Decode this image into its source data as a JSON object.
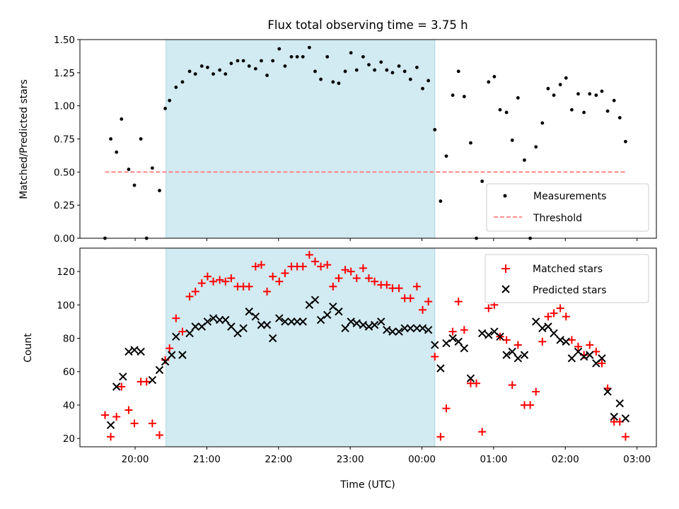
{
  "chart_data": {
    "type": "scatter",
    "title": "Flux total observing time = 3.75 h",
    "xlabel": "Time (UTC)",
    "x_unit": "hours after 00:00 UTC of the first day",
    "xlim": [
      19.23,
      27.27
    ],
    "xticks": [
      {
        "x": 20,
        "label": "20:00"
      },
      {
        "x": 21,
        "label": "21:00"
      },
      {
        "x": 22,
        "label": "22:00"
      },
      {
        "x": 23,
        "label": "23:00"
      },
      {
        "x": 24,
        "label": "00:00"
      },
      {
        "x": 25,
        "label": "01:00"
      },
      {
        "x": 26,
        "label": "02:00"
      },
      {
        "x": 27,
        "label": "03:00"
      }
    ],
    "shaded_region": {
      "x_start": 20.43,
      "x_end": 24.18,
      "color": "#add8e6"
    },
    "top_panel": {
      "ylabel": "Matched/Predicted stars",
      "ylim": [
        0,
        1.5
      ],
      "yticks": [
        "0.00",
        "0.25",
        "0.50",
        "0.75",
        "1.00",
        "1.25",
        "1.50"
      ],
      "legend": {
        "location": "lower right",
        "entries": [
          "Measurements",
          "Threshold"
        ]
      },
      "threshold": {
        "name": "Threshold",
        "y": 0.5,
        "x_start": 19.58,
        "x_end": 26.86,
        "color": "#ff7f7f"
      },
      "measurements": {
        "name": "Measurements",
        "color": "#000000",
        "x": [
          19.58,
          19.66,
          19.74,
          19.81,
          19.91,
          19.99,
          20.08,
          20.16,
          20.24,
          20.34,
          20.42,
          20.48,
          20.57,
          20.66,
          20.76,
          20.84,
          20.93,
          21.01,
          21.09,
          21.18,
          21.26,
          21.34,
          21.43,
          21.51,
          21.59,
          21.68,
          21.76,
          21.84,
          21.92,
          22.01,
          22.09,
          22.18,
          22.26,
          22.34,
          22.43,
          22.51,
          22.59,
          22.68,
          22.76,
          22.84,
          22.93,
          23.01,
          23.09,
          23.18,
          23.26,
          23.34,
          23.43,
          23.51,
          23.59,
          23.68,
          23.76,
          23.84,
          23.93,
          24.01,
          24.09,
          24.18,
          24.26,
          24.34,
          24.43,
          24.51,
          24.59,
          24.68,
          24.76,
          24.84,
          24.93,
          25.01,
          25.09,
          25.18,
          25.26,
          25.34,
          25.43,
          25.51,
          25.59,
          25.68,
          25.76,
          25.84,
          25.93,
          26.01,
          26.09,
          26.18,
          26.26,
          26.34,
          26.43,
          26.51,
          26.59,
          26.68,
          26.76,
          26.84
        ],
        "y": [
          0.0,
          0.75,
          0.65,
          0.9,
          0.52,
          0.4,
          0.75,
          0.0,
          0.53,
          0.36,
          0.98,
          1.04,
          1.14,
          1.18,
          1.26,
          1.24,
          1.3,
          1.29,
          1.24,
          1.27,
          1.24,
          1.32,
          1.34,
          1.34,
          1.3,
          1.28,
          1.34,
          1.23,
          1.34,
          1.43,
          1.3,
          1.37,
          1.37,
          1.37,
          1.44,
          1.26,
          1.2,
          1.37,
          1.18,
          1.17,
          1.26,
          1.4,
          1.27,
          1.37,
          1.31,
          1.27,
          1.33,
          1.27,
          1.25,
          1.3,
          1.26,
          1.2,
          1.29,
          1.13,
          1.19,
          0.82,
          0.28,
          0.62,
          1.08,
          1.26,
          1.07,
          0.72,
          0.0,
          0.43,
          1.18,
          1.22,
          0.97,
          0.95,
          0.74,
          1.06,
          0.59,
          0.0,
          0.69,
          0.87,
          1.13,
          1.08,
          1.16,
          1.21,
          0.97,
          1.09,
          0.95,
          1.09,
          1.08,
          1.11,
          0.96,
          1.04,
          0.91,
          0.73
        ]
      }
    },
    "bottom_panel": {
      "ylabel": "Count",
      "ylim": [
        15,
        134
      ],
      "yticks": [
        "20",
        "40",
        "60",
        "80",
        "100",
        "120"
      ],
      "legend": {
        "location": "upper right",
        "entries": [
          "Matched stars",
          "Predicted stars"
        ]
      },
      "series": [
        {
          "name": "Matched stars",
          "marker": "+",
          "color": "#ff0000",
          "x": [
            19.58,
            19.66,
            19.74,
            19.81,
            19.91,
            19.99,
            20.08,
            20.16,
            20.24,
            20.34,
            20.42,
            20.48,
            20.57,
            20.66,
            20.76,
            20.84,
            20.93,
            21.01,
            21.09,
            21.18,
            21.26,
            21.34,
            21.43,
            21.51,
            21.59,
            21.68,
            21.76,
            21.84,
            21.92,
            22.01,
            22.09,
            22.18,
            22.26,
            22.34,
            22.43,
            22.51,
            22.59,
            22.68,
            22.76,
            22.84,
            22.93,
            23.01,
            23.09,
            23.18,
            23.26,
            23.34,
            23.43,
            23.51,
            23.59,
            23.68,
            23.76,
            23.84,
            23.93,
            24.01,
            24.09,
            24.18,
            24.26,
            24.34,
            24.43,
            24.51,
            24.59,
            24.68,
            24.76,
            24.84,
            24.93,
            25.01,
            25.09,
            25.18,
            25.26,
            25.34,
            25.43,
            25.51,
            25.59,
            25.68,
            25.76,
            25.84,
            25.93,
            26.01,
            26.09,
            26.18,
            26.26,
            26.34,
            26.43,
            26.51,
            26.59,
            26.68,
            26.76,
            26.84
          ],
          "y": [
            34,
            21,
            33,
            51,
            37,
            29,
            54,
            54,
            29,
            22,
            67,
            74,
            92,
            84,
            105,
            108,
            113,
            117,
            114,
            115,
            114,
            116,
            111,
            111,
            111,
            123,
            124,
            108,
            117,
            114,
            119,
            123,
            123,
            123,
            130,
            126,
            123,
            124,
            111,
            116,
            121,
            120,
            116,
            122,
            116,
            114,
            112,
            112,
            110,
            110,
            104,
            104,
            111,
            97,
            102,
            69,
            21,
            38,
            84,
            102,
            85,
            53,
            53,
            24,
            98,
            100,
            81,
            79,
            52,
            76,
            40,
            40,
            48,
            78,
            93,
            95,
            98,
            93,
            79,
            75,
            70,
            76,
            72,
            65,
            50,
            30,
            30,
            21
          ]
        },
        {
          "name": "Predicted stars",
          "marker": "x",
          "color": "#000000",
          "x": [
            19.66,
            19.74,
            19.83,
            19.91,
            19.99,
            20.08,
            20.24,
            20.34,
            20.42,
            20.51,
            20.57,
            20.66,
            20.76,
            20.84,
            20.93,
            21.01,
            21.09,
            21.18,
            21.26,
            21.34,
            21.43,
            21.51,
            21.59,
            21.68,
            21.76,
            21.84,
            21.92,
            22.01,
            22.09,
            22.18,
            22.26,
            22.34,
            22.43,
            22.51,
            22.59,
            22.68,
            22.76,
            22.84,
            22.93,
            23.01,
            23.09,
            23.18,
            23.26,
            23.34,
            23.43,
            23.51,
            23.59,
            23.68,
            23.76,
            23.84,
            23.93,
            24.01,
            24.09,
            24.18,
            24.26,
            24.34,
            24.43,
            24.51,
            24.59,
            24.68,
            24.84,
            24.93,
            25.01,
            25.09,
            25.18,
            25.26,
            25.34,
            25.43,
            25.59,
            25.68,
            25.76,
            25.84,
            25.93,
            26.01,
            26.09,
            26.18,
            26.26,
            26.34,
            26.43,
            26.51,
            26.59,
            26.68,
            26.76,
            26.84
          ],
          "y": [
            28,
            51,
            57,
            72,
            73,
            72,
            55,
            61,
            66,
            70,
            81,
            70,
            83,
            87,
            87,
            90,
            92,
            91,
            91,
            87,
            83,
            86,
            96,
            93,
            88,
            88,
            80,
            92,
            90,
            90,
            90,
            90,
            100,
            103,
            91,
            94,
            99,
            96,
            86,
            90,
            89,
            88,
            87,
            88,
            90,
            85,
            84,
            84,
            86,
            86,
            86,
            86,
            85,
            76,
            62,
            77,
            80,
            78,
            74,
            56,
            83,
            82,
            84,
            81,
            70,
            72,
            68,
            70,
            90,
            86,
            87,
            83,
            79,
            78,
            68,
            72,
            69,
            70,
            65,
            68,
            48,
            33,
            41,
            32
          ]
        }
      ]
    }
  }
}
